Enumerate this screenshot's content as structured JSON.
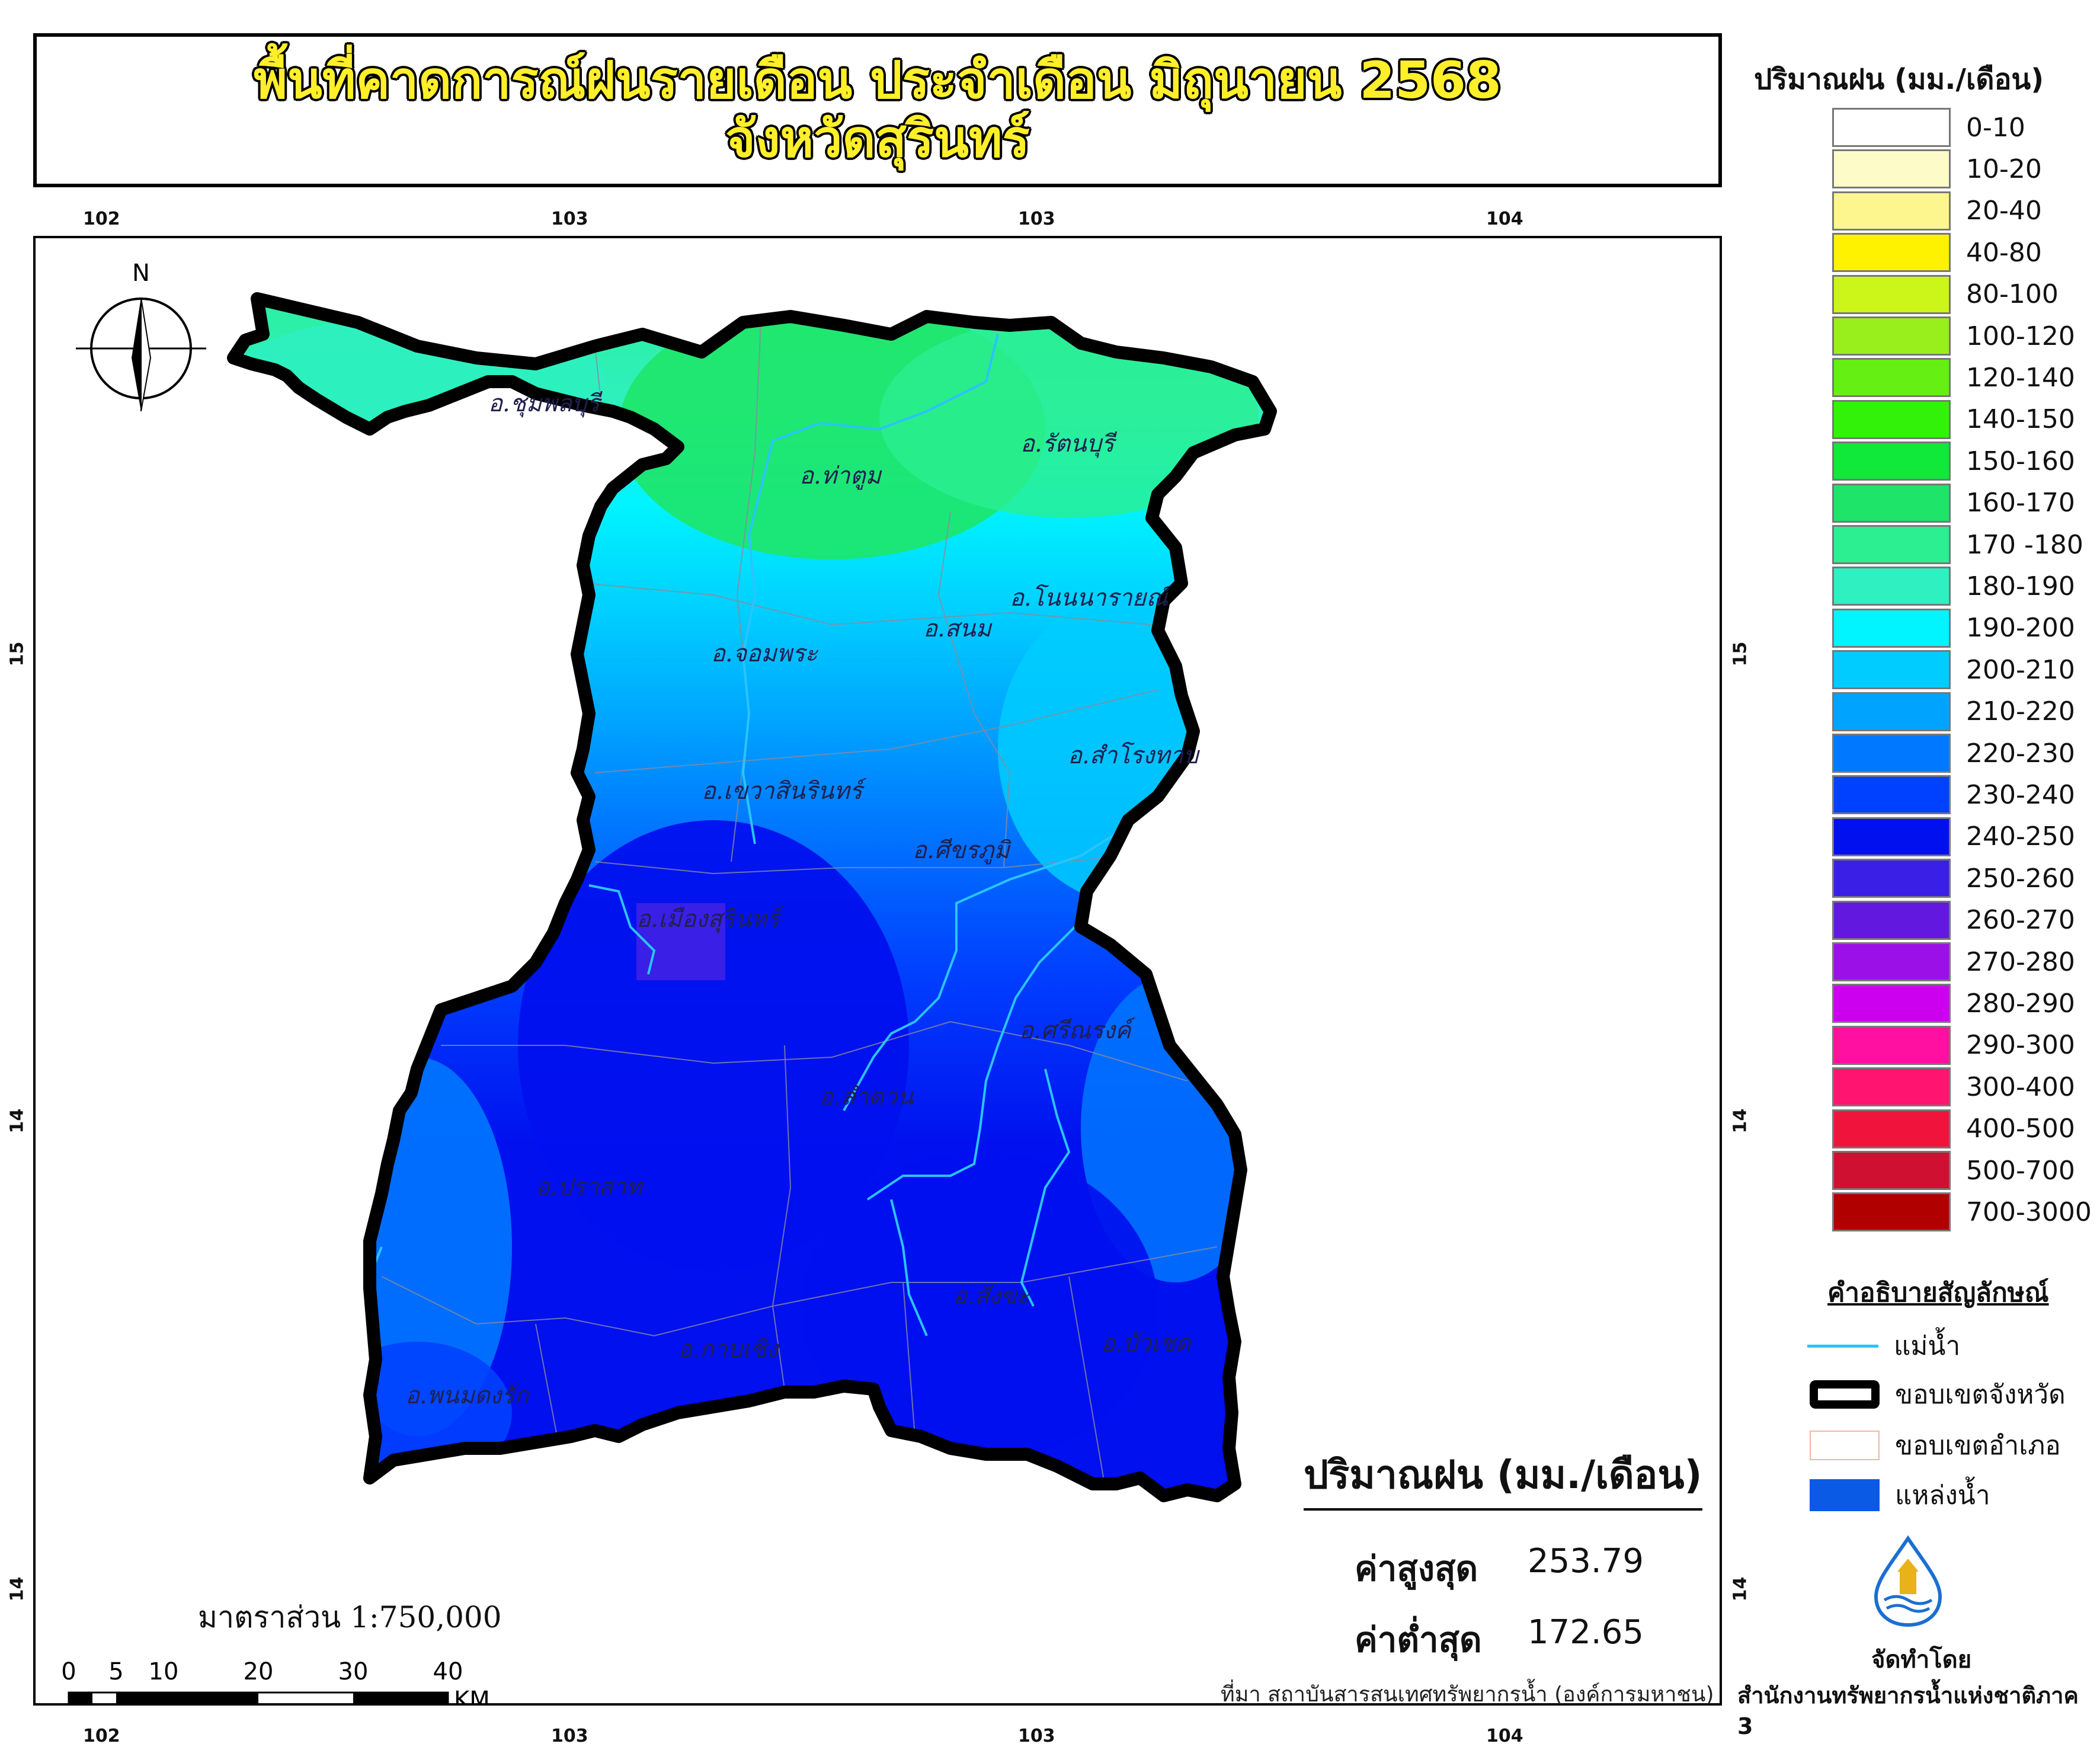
{
  "title": {
    "line1": "พื้นที่คาดการณ์ฝนรายเดือน ประจำเดือน มิถุนายน 2568",
    "line2": "จังหวัดสุรินทร์"
  },
  "grid": {
    "top_lon_labels": [
      "102",
      "103",
      "103",
      "104"
    ],
    "bottom_lon_labels": [
      "102",
      "103",
      "103",
      "104"
    ],
    "left_lat_labels": [
      "15",
      "14",
      "14"
    ],
    "right_lat_labels": [
      "15",
      "14",
      "14"
    ]
  },
  "north_arrow": {
    "label": "N"
  },
  "districts": [
    "อ.ชุมพลบุรี",
    "อ.ท่าตูม",
    "อ.รัตนบุรี",
    "อ.โนนนารายณ์",
    "อ.สนม",
    "อ.จอมพระ",
    "อ.สำโรงทาบ",
    "อ.เขวาสินรินทร์",
    "อ.ศีขรภูมิ",
    "อ.เมืองสุรินทร์",
    "อ.ศรีณรงค์",
    "อ.ลำดวน",
    "อ.ปราสาท",
    "อ.สังขะ",
    "อ.กาบเชิง",
    "อ.บัวเชด",
    "อ.พนมดงรัก"
  ],
  "legend": {
    "title": "ปริมาณฝน (มม./เดือน)",
    "classes": [
      {
        "label": "0-10",
        "color": "#ffffff"
      },
      {
        "label": "10-20",
        "color": "#fdfcc8"
      },
      {
        "label": "20-40",
        "color": "#fdf68e"
      },
      {
        "label": "40-80",
        "color": "#fff200"
      },
      {
        "label": "80-100",
        "color": "#ccf51a"
      },
      {
        "label": "100-120",
        "color": "#99ef1c"
      },
      {
        "label": "120-140",
        "color": "#66ef12"
      },
      {
        "label": "140-150",
        "color": "#33f20a"
      },
      {
        "label": "150-160",
        "color": "#10e83a"
      },
      {
        "label": "160-170",
        "color": "#1ee569"
      },
      {
        "label": "170 -180",
        "color": "#2bef91"
      },
      {
        "label": "180-190",
        "color": "#2ef0c0"
      },
      {
        "label": "190-200",
        "color": "#00f5ff"
      },
      {
        "label": "200-210",
        "color": "#00ccff"
      },
      {
        "label": "210-220",
        "color": "#00a4ff"
      },
      {
        "label": "220-230",
        "color": "#0078ff"
      },
      {
        "label": "230-240",
        "color": "#0040ff"
      },
      {
        "label": "240-250",
        "color": "#0010ee"
      },
      {
        "label": "250-260",
        "color": "#3a1fe6"
      },
      {
        "label": "260-270",
        "color": "#6318e0"
      },
      {
        "label": "270-280",
        "color": "#9a10e6"
      },
      {
        "label": "280-290",
        "color": "#cc00ee"
      },
      {
        "label": "290-300",
        "color": "#ff10a0"
      },
      {
        "label": "300-400",
        "color": "#ff1570"
      },
      {
        "label": "400-500",
        "color": "#f0143c"
      },
      {
        "label": "500-700",
        "color": "#d01030"
      },
      {
        "label": "700-3000",
        "color": "#b00000"
      }
    ]
  },
  "symbols": {
    "title": "คำอธิบายสัญลักษณ์",
    "river": "แม่น้ำ",
    "province_boundary": "ขอบเขตจังหวัด",
    "district_boundary": "ขอบเขตอำเภอ",
    "water_body": "แหล่งน้ำ"
  },
  "stats": {
    "title": "ปริมาณฝน (มม./เดือน)",
    "max_label": "ค่าสูงสุด",
    "max_value": "253.79",
    "min_label": "ค่าต่ำสุด",
    "min_value": "172.65"
  },
  "scale": {
    "text": "มาตราส่วน 1:750,000",
    "ticks": [
      "0",
      "5",
      "10",
      "20",
      "30",
      "40"
    ],
    "unit": "KM"
  },
  "source": "ที่มา  สถาบันสารสนเทศทรัพยากรน้ำ (องค์การมหาชน)",
  "producer": {
    "label": "จัดทำโดย",
    "name": "สำนักงานทรัพยากรน้ำแห่งชาติภาค 3"
  }
}
